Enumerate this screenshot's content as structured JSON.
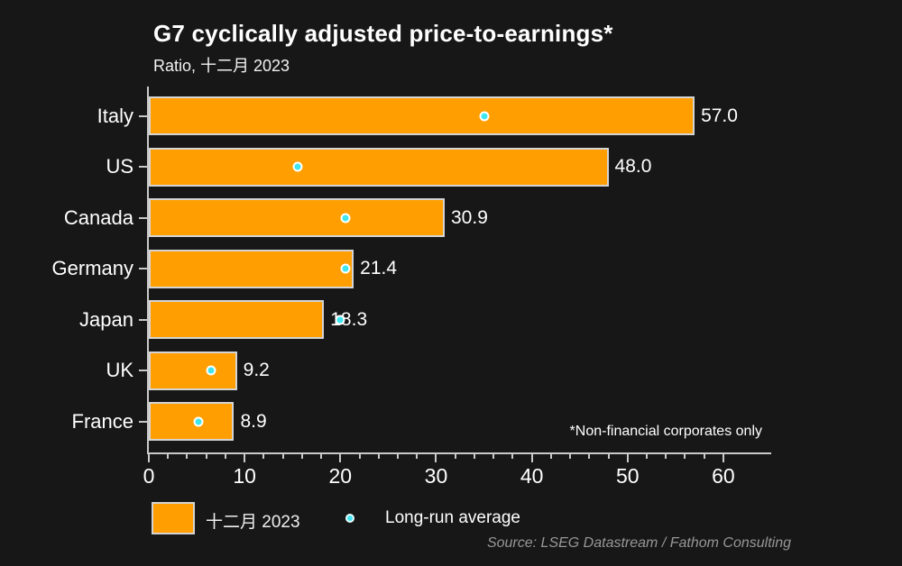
{
  "header": {
    "title": "G7 cyclically adjusted price-to-earnings*",
    "subtitle": "Ratio, 十二月 2023"
  },
  "annotation": "*Non-financial corporates only",
  "source": "Source: LSEG Datastream / Fathom Consulting",
  "legend": {
    "bar_label": "十二月 2023",
    "dot_label": "Long-run average"
  },
  "colors": {
    "background": "#171717",
    "bar_fill": "#ff9e00",
    "bar_border": "#d4d4d4",
    "dot_fill": "#3fe5f0",
    "dot_border": "#ffffff",
    "axis": "#c9c9c9",
    "text": "#ffffff",
    "source_text": "#979797"
  },
  "chart_data": {
    "type": "bar",
    "orientation": "horizontal",
    "title": "G7 cyclically adjusted price-to-earnings*",
    "xlabel": "",
    "ylabel": "",
    "categories": [
      "Italy",
      "US",
      "Canada",
      "Germany",
      "Japan",
      "UK",
      "France"
    ],
    "series": [
      {
        "name": "十二月 2023",
        "type": "bar",
        "values": [
          57.0,
          48.0,
          30.9,
          21.4,
          18.3,
          9.2,
          8.9
        ]
      },
      {
        "name": "Long-run average",
        "type": "dot",
        "values": [
          35.0,
          15.5,
          20.5,
          20.5,
          20.0,
          6.5,
          5.2
        ]
      }
    ],
    "value_labels": [
      "57.0",
      "48.0",
      "30.9",
      "21.4",
      "18.3",
      "9.2",
      "8.9"
    ],
    "xlim": [
      0,
      65
    ],
    "x_major_ticks": [
      0,
      10,
      20,
      30,
      40,
      50,
      60
    ],
    "x_major_tick_labels": [
      "0",
      "10",
      "20",
      "30",
      "40",
      "50",
      "60"
    ],
    "x_minor_tick_step": 2,
    "x_minor_tick_max": 60,
    "grid": false,
    "legend_position": "bottom"
  }
}
